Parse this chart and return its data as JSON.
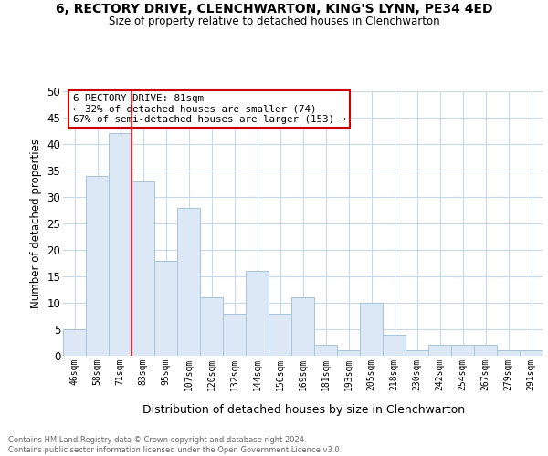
{
  "title1": "6, RECTORY DRIVE, CLENCHWARTON, KING'S LYNN, PE34 4ED",
  "title2": "Size of property relative to detached houses in Clenchwarton",
  "xlabel": "Distribution of detached houses by size in Clenchwarton",
  "ylabel": "Number of detached properties",
  "footer1": "Contains HM Land Registry data © Crown copyright and database right 2024.",
  "footer2": "Contains public sector information licensed under the Open Government Licence v3.0.",
  "annotation_line1": "6 RECTORY DRIVE: 81sqm",
  "annotation_line2": "← 32% of detached houses are smaller (74)",
  "annotation_line3": "67% of semi-detached houses are larger (153) →",
  "bar_color": "#dce8f5",
  "bar_edge_color": "#a8c4d8",
  "vline_color": "red",
  "categories": [
    "46sqm",
    "58sqm",
    "71sqm",
    "83sqm",
    "95sqm",
    "107sqm",
    "120sqm",
    "132sqm",
    "144sqm",
    "156sqm",
    "169sqm",
    "181sqm",
    "193sqm",
    "205sqm",
    "218sqm",
    "230sqm",
    "242sqm",
    "254sqm",
    "267sqm",
    "279sqm",
    "291sqm"
  ],
  "values": [
    5,
    34,
    42,
    33,
    18,
    28,
    11,
    8,
    16,
    8,
    11,
    2,
    1,
    10,
    4,
    1,
    2,
    2,
    2,
    1,
    1
  ],
  "ylim": [
    0,
    50
  ],
  "yticks": [
    0,
    5,
    10,
    15,
    20,
    25,
    30,
    35,
    40,
    45,
    50
  ],
  "vline_x_index": 2.5,
  "bg_color": "#ffffff",
  "grid_color": "#c8d8e8",
  "annotation_box_color": "#ffffff",
  "annotation_box_edge": "#cc0000"
}
